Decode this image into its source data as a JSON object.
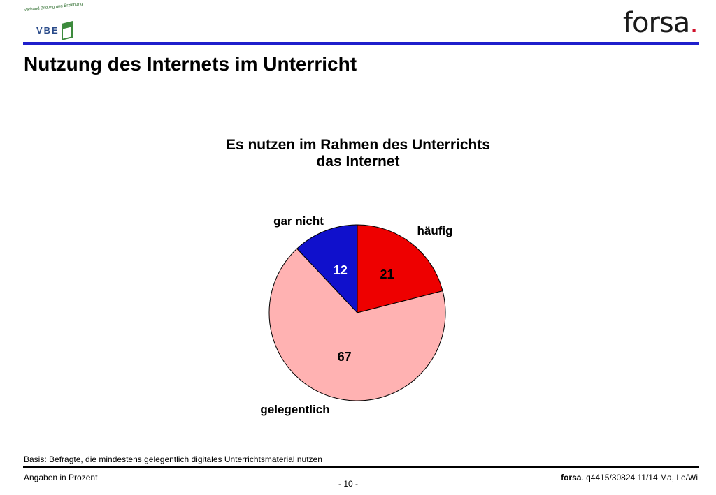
{
  "header": {
    "vbe_logo_tagline": "Verband Bildung und Erziehung",
    "vbe_logo_mark": "VBE",
    "forsa_logo": "forsa",
    "forsa_logo_dot": "."
  },
  "page_title": "Nutzung des Internets im Unterricht",
  "chart_data": {
    "type": "pie",
    "title_line1": "Es nutzen im Rahmen des Unterrichts",
    "title_line2": "das Internet",
    "slices": [
      {
        "label": "häufig",
        "value": 21,
        "color": "#ee0000"
      },
      {
        "label": "gelegentlich",
        "value": 67,
        "color": "#ffb2b2"
      },
      {
        "label": "gar nicht",
        "value": 12,
        "color": "#1010cc"
      }
    ]
  },
  "footer": {
    "basis": "Basis: Befragte, die mindestens gelegentlich digitales Unterrichtsmaterial nutzen",
    "units": "Angaben in Prozent",
    "page_number": "- 10 -",
    "source_brand": "forsa",
    "source_rest": ". q4415/30824 11/14 Ma, Le/Wi"
  }
}
